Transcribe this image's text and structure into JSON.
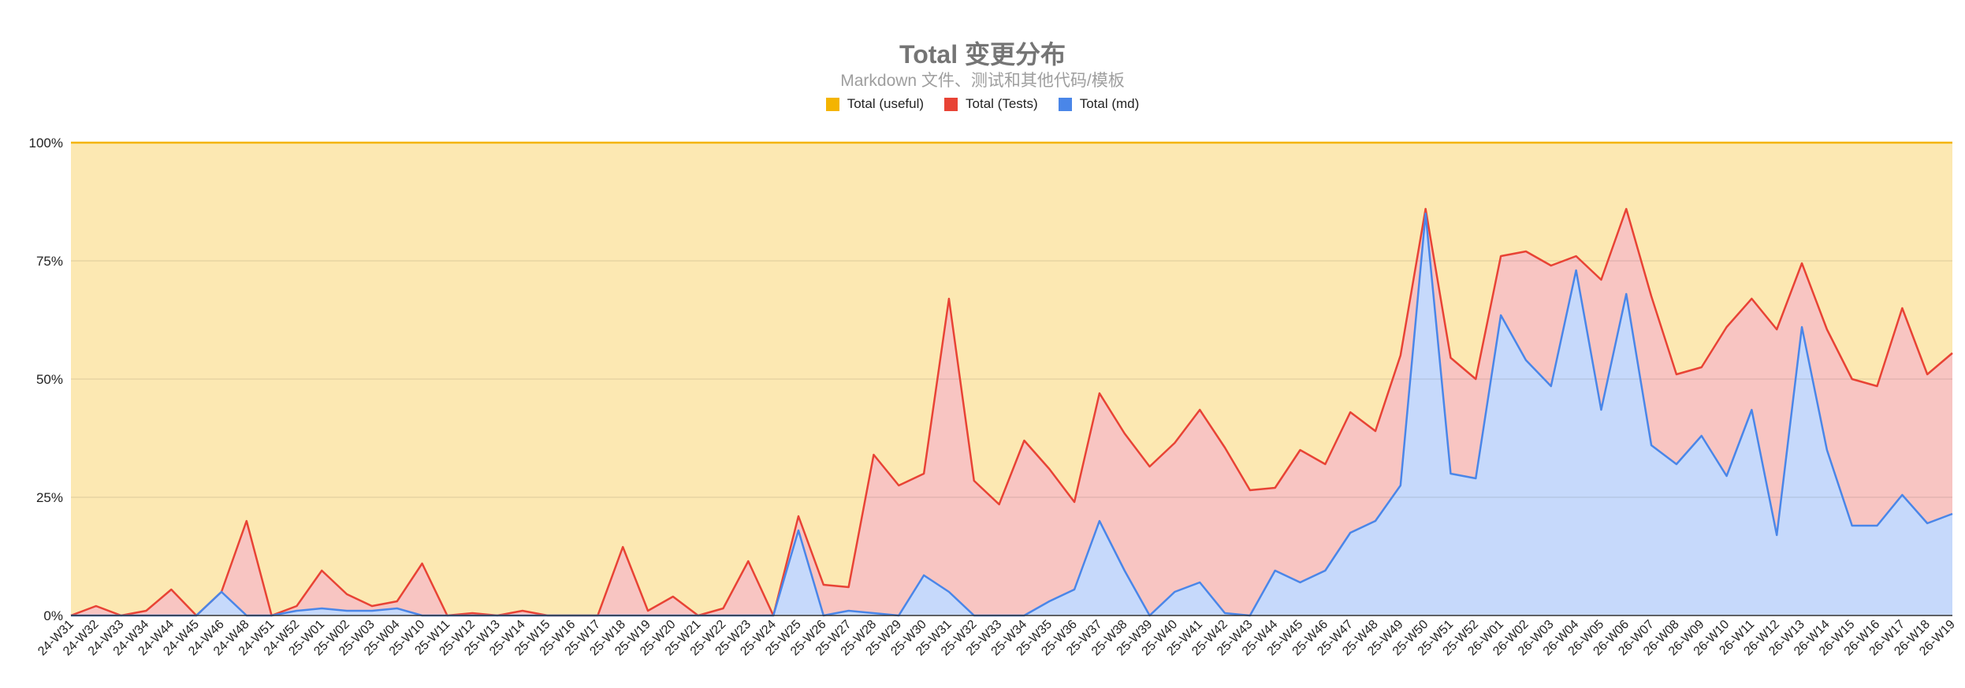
{
  "chart_data": {
    "type": "area",
    "stacked": true,
    "normalized": true,
    "title": "Total 变更分布",
    "subtitle": "Markdown 文件、测试和其他代码/模板",
    "legend_position": "top",
    "ylim": [
      0,
      100
    ],
    "yticks": [
      "0%",
      "25%",
      "50%",
      "75%",
      "100%"
    ],
    "grid": true,
    "categories": [
      "24-W31",
      "24-W32",
      "24-W33",
      "24-W34",
      "24-W44",
      "24-W45",
      "24-W46",
      "24-W48",
      "24-W51",
      "24-W52",
      "25-W01",
      "25-W02",
      "25-W03",
      "25-W04",
      "25-W10",
      "25-W11",
      "25-W12",
      "25-W13",
      "25-W14",
      "25-W15",
      "25-W16",
      "25-W17",
      "25-W18",
      "25-W19",
      "25-W20",
      "25-W21",
      "25-W22",
      "25-W23",
      "25-W24",
      "25-W25",
      "25-W26",
      "25-W27",
      "25-W28",
      "25-W29",
      "25-W30",
      "25-W31",
      "25-W32",
      "25-W33",
      "25-W34",
      "25-W35",
      "25-W36",
      "25-W37",
      "25-W38",
      "25-W39",
      "25-W40",
      "25-W41",
      "25-W42",
      "25-W43",
      "25-W44",
      "25-W45",
      "25-W46",
      "25-W47",
      "25-W48",
      "25-W49",
      "25-W50",
      "25-W51",
      "25-W52",
      "26-W01",
      "26-W02",
      "26-W03",
      "26-W04",
      "26-W05",
      "26-W06",
      "26-W07",
      "26-W08",
      "26-W09",
      "26-W10",
      "26-W11",
      "26-W12",
      "26-W13",
      "26-W14",
      "26-W15",
      "26-W16",
      "26-W17",
      "26-W18",
      "26-W19"
    ],
    "series": [
      {
        "name": "Total (useful)",
        "color": "#f4b400",
        "fill": "#fce8b2",
        "cumulative": [
          100,
          100,
          100,
          100,
          100,
          100,
          100,
          100,
          100,
          100,
          100,
          100,
          100,
          100,
          100,
          100,
          100,
          100,
          100,
          100,
          100,
          100,
          100,
          100,
          100,
          100,
          100,
          100,
          100,
          100,
          100,
          100,
          100,
          100,
          100,
          100,
          100,
          100,
          100,
          100,
          100,
          100,
          100,
          100,
          100,
          100,
          100,
          100,
          100,
          100,
          100,
          100,
          100,
          100,
          100,
          100,
          100,
          100,
          100,
          100,
          100,
          100,
          100,
          100,
          100,
          100,
          100,
          100,
          100,
          100,
          100,
          100,
          100,
          100,
          100,
          100
        ]
      },
      {
        "name": "Total (Tests)",
        "color": "#e84335",
        "fill": "#f8c5c2",
        "cumulative": [
          0,
          2,
          0,
          1,
          5.5,
          0,
          5,
          20,
          0,
          2,
          9.5,
          4.5,
          2,
          3,
          11,
          0,
          0.5,
          0,
          1,
          0,
          0,
          0,
          14.5,
          1,
          4,
          0,
          1.5,
          11.5,
          0,
          21,
          6.5,
          6,
          34,
          27.5,
          30,
          67,
          28.5,
          23.5,
          37,
          31,
          24,
          47,
          38.5,
          31.5,
          36.5,
          43.5,
          35.5,
          26.5,
          27,
          35,
          32,
          43,
          39,
          55,
          86,
          54.5,
          50,
          76,
          77,
          74,
          76,
          71,
          86,
          67.5,
          51,
          52.5,
          61,
          67,
          60.5,
          74.5,
          60.5,
          50,
          48.5,
          65,
          51,
          55.5
        ]
      },
      {
        "name": "Total (md)",
        "color": "#4a86e8",
        "fill": "#c6d9fb",
        "cumulative": [
          0,
          0,
          0,
          0,
          0,
          0,
          5,
          0,
          0,
          1,
          1.5,
          1,
          1,
          1.5,
          0,
          0,
          0,
          0,
          0,
          0,
          0,
          0,
          0,
          0,
          0,
          0,
          0,
          0,
          0,
          18,
          0,
          1,
          0.5,
          0,
          8.5,
          5,
          0,
          0,
          0,
          3,
          5.5,
          20,
          9.5,
          0,
          5,
          7,
          0.5,
          0,
          9.5,
          7,
          9.5,
          17.5,
          20,
          27.5,
          85,
          30,
          29,
          63.5,
          54,
          48.5,
          73,
          43.5,
          68,
          36,
          32,
          38,
          29.5,
          43.5,
          17,
          61,
          35,
          19,
          19,
          25.5,
          19.5,
          21.5
        ]
      }
    ]
  }
}
